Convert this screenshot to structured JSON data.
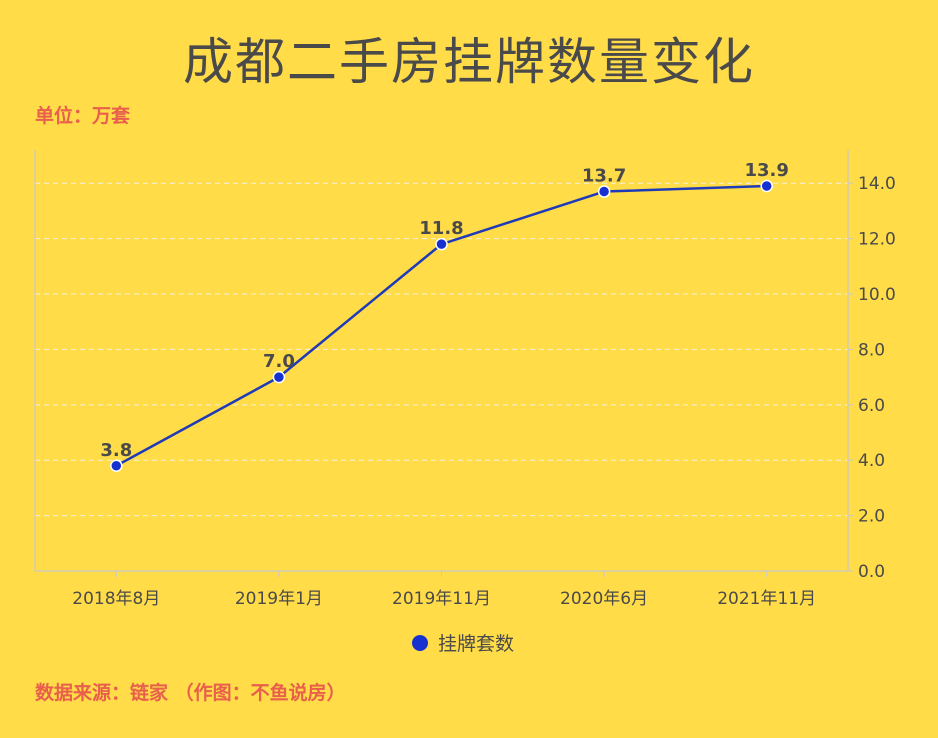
{
  "title": "成都二手房挂牌数量变化",
  "unit_label": "单位：万套",
  "source_label": "数据来源：链家 （作图：不鱼说房）",
  "colors": {
    "background": "#FFDC48",
    "line": "#1F3AB8",
    "marker": "#1730D0",
    "accent_text": "#E8604C",
    "axis": "#c9c9c9",
    "grid": "#f3f0e0",
    "label": "#4a4a4a"
  },
  "chart_data": {
    "type": "line",
    "title": "成都二手房挂牌数量变化",
    "categories": [
      "2018年8月",
      "2019年1月",
      "2019年11月",
      "2020年6月",
      "2021年11月"
    ],
    "series": [
      {
        "name": "挂牌套数",
        "values": [
          3.8,
          7.0,
          11.8,
          13.7,
          13.9
        ],
        "labels": [
          "3.8",
          "7.0",
          "11.8",
          "13.7",
          "13.9"
        ]
      }
    ],
    "y_ticks": [
      "0.0",
      "2.0",
      "4.0",
      "6.0",
      "8.0",
      "10.0",
      "12.0",
      "14.0"
    ],
    "ylim": [
      0,
      15.2
    ],
    "y_axis_side": "right",
    "grid": true,
    "legend": "bottom-center"
  }
}
